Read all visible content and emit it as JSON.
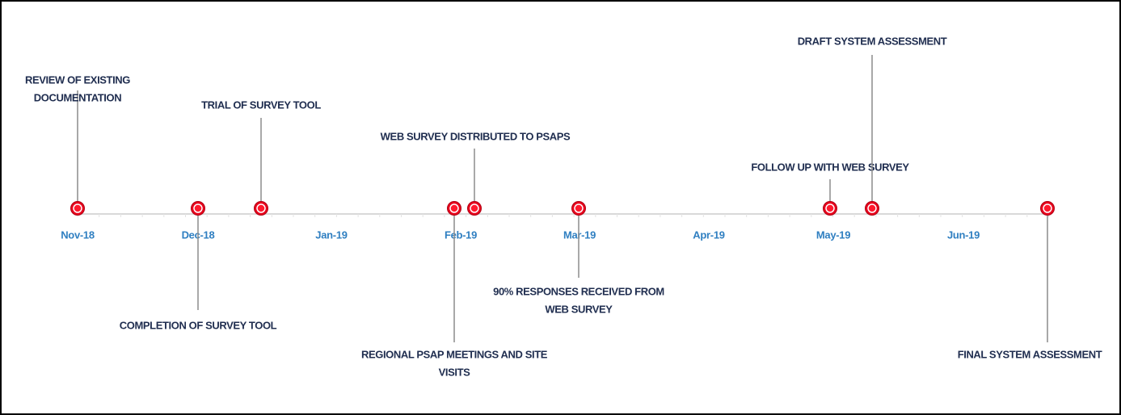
{
  "timeline": {
    "months": [
      "Nov-18",
      "Dec-18",
      "Jan-19",
      "Feb-19",
      "Mar-19",
      "Apr-19",
      "May-19",
      "Jun-19"
    ],
    "events": [
      {
        "lines": [
          "REVIEW OF EXISTING",
          "DOCUMENTATION"
        ]
      },
      {
        "lines": [
          "COMPLETION OF SURVEY TOOL"
        ]
      },
      {
        "lines": [
          "TRIAL OF SURVEY TOOL"
        ]
      },
      {
        "lines": [
          "REGIONAL PSAP MEETINGS AND SITE",
          "VISITS"
        ]
      },
      {
        "lines": [
          "WEB SURVEY DISTRIBUTED TO PSAPS"
        ]
      },
      {
        "lines": [
          "90% RESPONSES RECEIVED FROM",
          "WEB SURVEY"
        ]
      },
      {
        "lines": [
          "FOLLOW UP WITH WEB SURVEY"
        ]
      },
      {
        "lines": [
          "DRAFT SYSTEM ASSESSMENT"
        ]
      },
      {
        "lines": [
          "FINAL SYSTEM ASSESSMENT"
        ]
      }
    ]
  }
}
